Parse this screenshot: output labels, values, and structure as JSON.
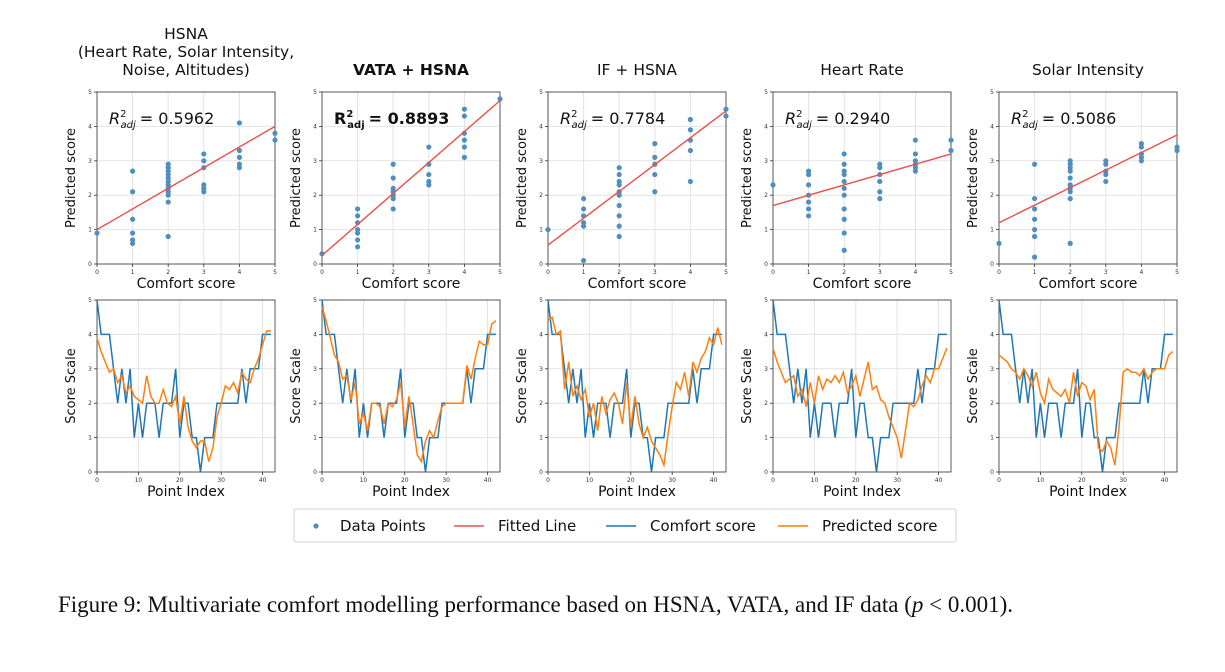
{
  "colors": {
    "data_points": "#4f8fbf",
    "fitted_line": "#e8504a",
    "comfort_score": "#1f77b4",
    "predicted_score": "#ff7f0e",
    "grid": "#e3e3e3",
    "axis": "#333333"
  },
  "legend": {
    "items": [
      {
        "label": "Data Points",
        "kind": "dot",
        "color": "#4f8fbf"
      },
      {
        "label": "Fitted Line",
        "kind": "line",
        "color": "#e8504a"
      },
      {
        "label": "Comfort score",
        "kind": "line",
        "color": "#1f77b4"
      },
      {
        "label": "Predicted score",
        "kind": "line",
        "color": "#ff7f0e"
      }
    ]
  },
  "caption": {
    "prefix": "Figure 9:  Multivariate comfort modelling performance based on HSNA, VATA, and IF data (",
    "p_symbol": "p",
    "suffix": " < 0.001)."
  },
  "chart_data": {
    "comfort_score": [
      5,
      4,
      4,
      4,
      3,
      2,
      3,
      2,
      3,
      1,
      2,
      1,
      2,
      2,
      2,
      1,
      2,
      2,
      2,
      3,
      1,
      2,
      2,
      1,
      1,
      0,
      1,
      1,
      1,
      2,
      2,
      2,
      2,
      2,
      2,
      3,
      2,
      3,
      3,
      3,
      4,
      4,
      4
    ],
    "panels": [
      {
        "title_lines": [
          "HSNA",
          "(Heart Rate, Solar Intensity,",
          "Noise, Altitudes)"
        ],
        "title_bold": false,
        "r2_base": "R",
        "r2_sub": "adj",
        "r2_sup": "2",
        "r2_value": "= 0.5962",
        "scatter": {
          "type": "scatter",
          "xlabel": "Comfort score",
          "ylabel": "Predicted score",
          "xlim": [
            0,
            5
          ],
          "ylim": [
            0,
            5
          ],
          "xticks": [
            0,
            1,
            2,
            3,
            4,
            5
          ],
          "yticks": [
            0,
            1,
            2,
            3,
            4,
            5
          ],
          "x": [
            0,
            1,
            1,
            1,
            1,
            1,
            1,
            2,
            2,
            2,
            2,
            2,
            2,
            2,
            2,
            2,
            2,
            2,
            2,
            3,
            3,
            3,
            3,
            3,
            3,
            4,
            4,
            4,
            4,
            4,
            5,
            5
          ],
          "y": [
            0.9,
            2.7,
            2.1,
            1.3,
            0.9,
            0.7,
            0.6,
            2.9,
            2.8,
            2.6,
            2.5,
            2.4,
            2.3,
            2.2,
            2.1,
            1.8,
            0.8,
            2.7,
            2.0,
            3.2,
            3.0,
            2.8,
            2.3,
            2.2,
            2.1,
            4.1,
            3.3,
            3.1,
            2.9,
            2.8,
            3.8,
            3.6
          ],
          "fit": {
            "intercept": 1.0,
            "slope": 0.6
          }
        },
        "series": {
          "type": "line",
          "xlabel": "Point Index",
          "ylabel": "Score Scale",
          "xlim": [
            0,
            43
          ],
          "ylim": [
            0,
            5
          ],
          "xticks": [
            0,
            10,
            20,
            30,
            40
          ],
          "yticks": [
            0,
            1,
            2,
            3,
            4,
            5
          ],
          "predicted": [
            3.9,
            3.5,
            3.2,
            2.9,
            3.0,
            2.6,
            2.8,
            2.3,
            2.5,
            2.2,
            2.1,
            2.0,
            2.8,
            2.2,
            2.0,
            2.0,
            2.4,
            2.0,
            1.9,
            2.2,
            1.4,
            2.2,
            1.3,
            0.9,
            0.7,
            0.9,
            0.9,
            0.3,
            0.7,
            1.6,
            2.0,
            2.5,
            2.4,
            2.6,
            2.3,
            2.9,
            2.7,
            2.6,
            3.0,
            3.3,
            3.7,
            4.1,
            4.1
          ]
        }
      },
      {
        "title_lines": [
          "VATA + HSNA"
        ],
        "title_bold": true,
        "r2_base": "R",
        "r2_sub": "adj",
        "r2_sup": "2",
        "r2_value": "= 0.8893",
        "scatter": {
          "type": "scatter",
          "xlabel": "Comfort score",
          "ylabel": "Predicted score",
          "xlim": [
            0,
            5
          ],
          "ylim": [
            0,
            5
          ],
          "xticks": [
            0,
            1,
            2,
            3,
            4,
            5
          ],
          "yticks": [
            0,
            1,
            2,
            3,
            4,
            5
          ],
          "x": [
            0,
            1,
            1,
            1,
            1,
            1,
            1,
            1,
            2,
            2,
            2,
            2,
            2,
            2,
            2,
            3,
            3,
            3,
            3,
            3,
            4,
            4,
            4,
            4,
            4,
            4,
            5
          ],
          "y": [
            0.3,
            1.6,
            1.4,
            1.2,
            1.0,
            0.9,
            0.7,
            0.5,
            2.9,
            2.5,
            2.2,
            2.1,
            2.0,
            1.9,
            1.6,
            3.4,
            2.9,
            2.6,
            2.4,
            2.3,
            4.5,
            4.3,
            3.8,
            3.6,
            3.4,
            3.1,
            4.8
          ],
          "fit": {
            "intercept": 0.25,
            "slope": 0.9
          }
        },
        "series": {
          "type": "line",
          "xlabel": "Point Index",
          "ylabel": "Score Scale",
          "xlim": [
            0,
            43
          ],
          "ylim": [
            0,
            5
          ],
          "xticks": [
            0,
            10,
            20,
            30,
            40
          ],
          "yticks": [
            0,
            1,
            2,
            3,
            4,
            5
          ],
          "predicted": [
            4.8,
            4.4,
            3.9,
            3.4,
            3.2,
            2.7,
            2.8,
            2.1,
            2.6,
            1.4,
            1.7,
            1.2,
            2.0,
            2.0,
            1.9,
            1.4,
            2.0,
            1.9,
            2.1,
            2.6,
            1.3,
            2.2,
            1.4,
            0.5,
            0.3,
            0.9,
            1.2,
            1.0,
            1.5,
            1.9,
            2.0,
            2.0,
            2.0,
            2.0,
            2.0,
            3.1,
            2.7,
            3.3,
            3.8,
            3.7,
            3.7,
            4.3,
            4.4
          ]
        }
      },
      {
        "title_lines": [
          "IF + HSNA"
        ],
        "title_bold": false,
        "r2_base": "R",
        "r2_sub": "adj",
        "r2_sup": "2",
        "r2_value": "= 0.7784",
        "scatter": {
          "type": "scatter",
          "xlabel": "Comfort score",
          "ylabel": "Predicted score",
          "xlim": [
            0,
            5
          ],
          "ylim": [
            0,
            5
          ],
          "xticks": [
            0,
            1,
            2,
            3,
            4,
            5
          ],
          "yticks": [
            0,
            1,
            2,
            3,
            4,
            5
          ],
          "x": [
            0,
            1,
            1,
            1,
            1,
            1,
            1,
            2,
            2,
            2,
            2,
            2,
            2,
            2,
            2,
            2,
            2,
            3,
            3,
            3,
            3,
            3,
            4,
            4,
            4,
            4,
            4,
            5,
            5
          ],
          "y": [
            1.0,
            1.9,
            1.6,
            1.4,
            1.2,
            1.1,
            0.1,
            2.8,
            2.6,
            2.4,
            2.3,
            2.1,
            2.0,
            1.7,
            1.4,
            1.1,
            0.8,
            3.5,
            3.1,
            2.9,
            2.6,
            2.1,
            4.2,
            3.9,
            3.6,
            3.3,
            2.4,
            4.5,
            4.3
          ],
          "fit": {
            "intercept": 0.55,
            "slope": 0.78
          }
        },
        "series": {
          "type": "line",
          "xlabel": "Point Index",
          "ylabel": "Score Scale",
          "xlim": [
            0,
            43
          ],
          "ylim": [
            0,
            5
          ],
          "xticks": [
            0,
            10,
            20,
            30,
            40
          ],
          "yticks": [
            0,
            1,
            2,
            3,
            4,
            5
          ],
          "predicted": [
            4.4,
            4.5,
            4.0,
            4.1,
            2.4,
            3.2,
            2.2,
            2.5,
            2.1,
            2.4,
            1.6,
            2.0,
            1.2,
            2.2,
            1.7,
            2.1,
            2.3,
            2.0,
            1.4,
            2.6,
            1.3,
            2.2,
            1.4,
            1.0,
            1.3,
            0.9,
            0.7,
            0.5,
            0.2,
            1.1,
            1.9,
            2.6,
            2.4,
            2.9,
            2.2,
            3.2,
            2.9,
            3.3,
            3.5,
            3.9,
            3.7,
            4.2,
            3.7
          ]
        }
      },
      {
        "title_lines": [
          "Heart Rate"
        ],
        "title_bold": false,
        "r2_base": "R",
        "r2_sub": "adj",
        "r2_sup": "2",
        "r2_value": "= 0.2940",
        "scatter": {
          "type": "scatter",
          "xlabel": "Comfort score",
          "ylabel": "Predicted score",
          "xlim": [
            0,
            5
          ],
          "ylim": [
            0,
            5
          ],
          "xticks": [
            0,
            1,
            2,
            3,
            4,
            5
          ],
          "yticks": [
            0,
            1,
            2,
            3,
            4,
            5
          ],
          "x": [
            0,
            1,
            1,
            1,
            1,
            1,
            1,
            1,
            2,
            2,
            2,
            2,
            2,
            2,
            2,
            2,
            2,
            2,
            2,
            3,
            3,
            3,
            3,
            3,
            3,
            4,
            4,
            4,
            4,
            4,
            4,
            5,
            5
          ],
          "y": [
            2.3,
            2.7,
            2.6,
            2.3,
            2.0,
            1.8,
            1.6,
            1.4,
            3.2,
            2.9,
            2.7,
            2.6,
            2.4,
            2.2,
            2.0,
            1.6,
            1.3,
            0.9,
            0.4,
            2.9,
            2.8,
            2.6,
            2.4,
            2.1,
            1.9,
            3.6,
            3.2,
            3.0,
            2.9,
            2.8,
            2.7,
            3.6,
            3.3
          ],
          "fit": {
            "intercept": 1.7,
            "slope": 0.3
          }
        },
        "series": {
          "type": "line",
          "xlabel": "Point Index",
          "ylabel": "Score Scale",
          "xlim": [
            0,
            43
          ],
          "ylim": [
            0,
            5
          ],
          "xticks": [
            0,
            10,
            20,
            30,
            40
          ],
          "yticks": [
            0,
            1,
            2,
            3,
            4,
            5
          ],
          "predicted": [
            3.6,
            3.2,
            2.9,
            2.6,
            2.7,
            2.8,
            2.2,
            2.4,
            1.9,
            2.6,
            2.0,
            2.8,
            2.4,
            2.7,
            2.6,
            2.8,
            2.6,
            2.9,
            2.3,
            2.5,
            2.8,
            2.2,
            2.7,
            3.2,
            2.4,
            2.5,
            2.1,
            2.0,
            1.6,
            1.3,
            1.0,
            0.4,
            1.2,
            2.0,
            1.9,
            2.1,
            2.5,
            2.8,
            2.6,
            3.0,
            3.0,
            3.3,
            3.6
          ]
        }
      },
      {
        "title_lines": [
          "Solar Intensity"
        ],
        "title_bold": false,
        "r2_base": "R",
        "r2_sub": "adj",
        "r2_sup": "2",
        "r2_value": "= 0.5086",
        "scatter": {
          "type": "scatter",
          "xlabel": "Comfort score",
          "ylabel": "Predicted score",
          "xlim": [
            0,
            5
          ],
          "ylim": [
            0,
            5
          ],
          "xticks": [
            0,
            1,
            2,
            3,
            4,
            5
          ],
          "yticks": [
            0,
            1,
            2,
            3,
            4,
            5
          ],
          "x": [
            0,
            1,
            1,
            1,
            1,
            1,
            1,
            1,
            2,
            2,
            2,
            2,
            2,
            2,
            2,
            2,
            2,
            2,
            3,
            3,
            3,
            3,
            3,
            4,
            4,
            4,
            4,
            4,
            5,
            5
          ],
          "y": [
            0.6,
            2.9,
            1.9,
            1.6,
            1.3,
            1.0,
            0.8,
            0.2,
            3.0,
            2.9,
            2.8,
            2.7,
            2.5,
            2.3,
            2.2,
            2.1,
            1.9,
            0.6,
            3.0,
            2.9,
            2.7,
            2.6,
            2.4,
            3.5,
            3.4,
            3.2,
            3.1,
            3.0,
            3.4,
            3.3
          ],
          "fit": {
            "intercept": 1.2,
            "slope": 0.51
          }
        },
        "series": {
          "type": "line",
          "xlabel": "Point Index",
          "ylabel": "Score Scale",
          "xlim": [
            0,
            43
          ],
          "ylim": [
            0,
            5
          ],
          "xticks": [
            0,
            10,
            20,
            30,
            40
          ],
          "yticks": [
            0,
            1,
            2,
            3,
            4,
            5
          ],
          "predicted": [
            3.4,
            3.3,
            3.2,
            3.0,
            2.9,
            2.7,
            3.0,
            2.8,
            2.5,
            2.9,
            2.3,
            2.0,
            2.7,
            2.4,
            2.3,
            2.2,
            2.4,
            2.0,
            2.9,
            2.2,
            2.6,
            2.5,
            2.1,
            2.4,
            0.7,
            0.6,
            0.9,
            0.7,
            0.2,
            1.3,
            2.9,
            3.0,
            2.9,
            2.9,
            2.8,
            3.0,
            2.7,
            2.9,
            3.0,
            3.0,
            3.0,
            3.4,
            3.5
          ]
        }
      }
    ]
  }
}
